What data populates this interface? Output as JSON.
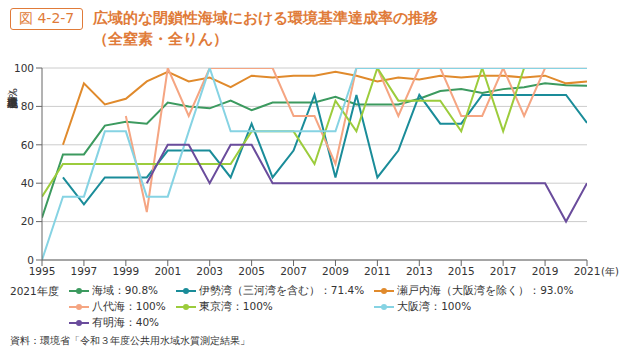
{
  "chart_data": {
    "type": "line",
    "figure_label": "図 4-2-7",
    "title": "広域的な閉鎖性海域における環境基準達成率の推移",
    "subtitle": "（全窒素・全りん）",
    "y_label": "環境基準達成率（%）",
    "x_label": "(年)",
    "legend_title": "2021年度",
    "source": "資料：環境省「令和３年度公共用水域水質測定結果」",
    "x": [
      1995,
      1996,
      1997,
      1998,
      1999,
      2000,
      2001,
      2002,
      2003,
      2004,
      2005,
      2006,
      2007,
      2008,
      2009,
      2010,
      2011,
      2012,
      2013,
      2014,
      2015,
      2016,
      2017,
      2018,
      2019,
      2020,
      2021
    ],
    "xlim": [
      1995,
      2021
    ],
    "xticks": [
      1995,
      1997,
      1999,
      2001,
      2003,
      2005,
      2007,
      2009,
      2011,
      2013,
      2015,
      2017,
      2019,
      2021
    ],
    "ylim": [
      0,
      100
    ],
    "yticks": [
      0,
      20,
      40,
      60,
      80,
      100
    ],
    "grid": true,
    "legend": "bottom",
    "series": [
      {
        "name": "海域：90.8%",
        "color": "#3c9a5f",
        "values": [
          22,
          55,
          55,
          70,
          72,
          71,
          82,
          80,
          79,
          83,
          78,
          82,
          82,
          82,
          85,
          81,
          81,
          81,
          84,
          88,
          89,
          87,
          89,
          90,
          92,
          91,
          90.8
        ]
      },
      {
        "name": "伊勢湾（三河湾を含む）：71.4%",
        "color": "#1a8c99",
        "values": [
          null,
          43,
          29,
          43,
          43,
          43,
          57,
          57,
          57,
          43,
          71,
          43,
          57,
          86,
          43,
          86,
          43,
          57,
          86,
          71,
          71,
          86,
          86,
          86,
          86,
          86,
          71.4
        ]
      },
      {
        "name": "瀬戸内海（大阪湾を除く）：93.0%",
        "color": "#e08a2c",
        "values": [
          null,
          60,
          92,
          81,
          84,
          93,
          98,
          93,
          95,
          90,
          96,
          95,
          96,
          96,
          98,
          96,
          93,
          95,
          94,
          96,
          95,
          96,
          96,
          95,
          96,
          92,
          93.0
        ]
      },
      {
        "name": "八代海：100%",
        "color": "#f5a582",
        "values": [
          null,
          null,
          null,
          null,
          75,
          25,
          100,
          75,
          100,
          100,
          100,
          100,
          75,
          75,
          50,
          100,
          100,
          75,
          100,
          100,
          75,
          75,
          100,
          75,
          100,
          100,
          100
        ]
      },
      {
        "name": "東京湾：100%",
        "color": "#9ccc3c",
        "values": [
          33,
          50,
          50,
          50,
          50,
          50,
          50,
          50,
          50,
          50,
          67,
          67,
          67,
          50,
          83,
          67,
          100,
          83,
          83,
          83,
          67,
          100,
          67,
          100,
          100,
          100,
          100
        ]
      },
      {
        "name": "大阪湾：100%",
        "color": "#86d3e3",
        "values": [
          0,
          33,
          33,
          67,
          67,
          33,
          33,
          67,
          100,
          67,
          67,
          67,
          67,
          67,
          67,
          100,
          100,
          100,
          100,
          100,
          100,
          100,
          100,
          100,
          100,
          100,
          100
        ]
      },
      {
        "name": "有明海：40%",
        "color": "#6a4c9c",
        "values": [
          null,
          null,
          null,
          null,
          null,
          40,
          60,
          60,
          40,
          60,
          60,
          40,
          40,
          40,
          40,
          40,
          40,
          40,
          40,
          40,
          40,
          40,
          40,
          40,
          40,
          20,
          40
        ]
      }
    ]
  }
}
